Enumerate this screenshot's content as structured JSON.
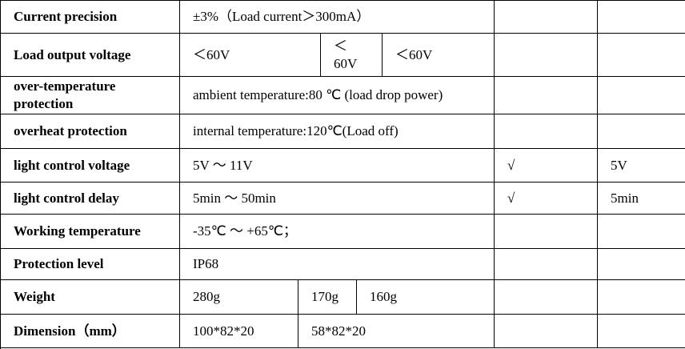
{
  "table": {
    "rows": [
      {
        "label": "Current precision",
        "cells": [
          "±3%（Load current＞300mA）"
        ]
      },
      {
        "label": "Load output voltage",
        "cells": [
          "＜60V",
          "＜ 60V",
          "＜60V"
        ]
      },
      {
        "label": "over-temperature protection",
        "cells": [
          "ambient temperature:80 ℃ (load drop power)"
        ]
      },
      {
        "label": "overheat protection",
        "cells": [
          "internal temperature:120℃(Load off)"
        ]
      },
      {
        "label": "light control voltage",
        "cells": [
          "5V ～ 11V",
          "√",
          "5V"
        ]
      },
      {
        "label": "light control delay",
        "cells": [
          "5min ～ 50min",
          "√",
          "5min"
        ]
      },
      {
        "label": "Working temperature",
        "cells": [
          "-35℃ ～ +65℃；"
        ]
      },
      {
        "label": "Protection level",
        "cells": [
          "IP68"
        ]
      },
      {
        "label": "Weight",
        "cells": [
          "280g",
          "170g",
          "160g"
        ]
      },
      {
        "label": "Dimension（mm）",
        "cells": [
          "100*82*20",
          "58*82*20"
        ]
      }
    ]
  }
}
